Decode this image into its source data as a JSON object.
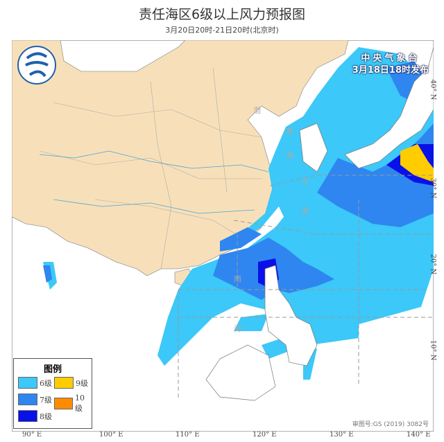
{
  "title": "责任海区6级以上风力预报图",
  "subtitle": "3月20日20时-21日20时(北京时)",
  "issuer": {
    "name": "中央气象台",
    "time": "3月18日18时发布"
  },
  "legend": {
    "title": "图例",
    "items": [
      {
        "label": "6级",
        "color": "#3cc8f8"
      },
      {
        "label": "9级",
        "color": "#ffcc00"
      },
      {
        "label": "7级",
        "color": "#2f86f0"
      },
      {
        "label": "10级",
        "color": "#ff8c00"
      },
      {
        "label": "8级",
        "color": "#0a10e8"
      }
    ]
  },
  "lon_labels": [
    "90° E",
    "100° E",
    "110° E",
    "120° E",
    "130° E",
    "140° E"
  ],
  "lat_labels": [
    "40° N",
    "30° N",
    "20° N",
    "10° N"
  ],
  "sea_labels": [
    "渤",
    "黄",
    "海",
    "东",
    "海",
    "南",
    "海"
  ],
  "approval": "审图号:GS (2019) 3082号",
  "colors": {
    "land_china": "#f7e0b9",
    "sea": "#ffffff"
  }
}
